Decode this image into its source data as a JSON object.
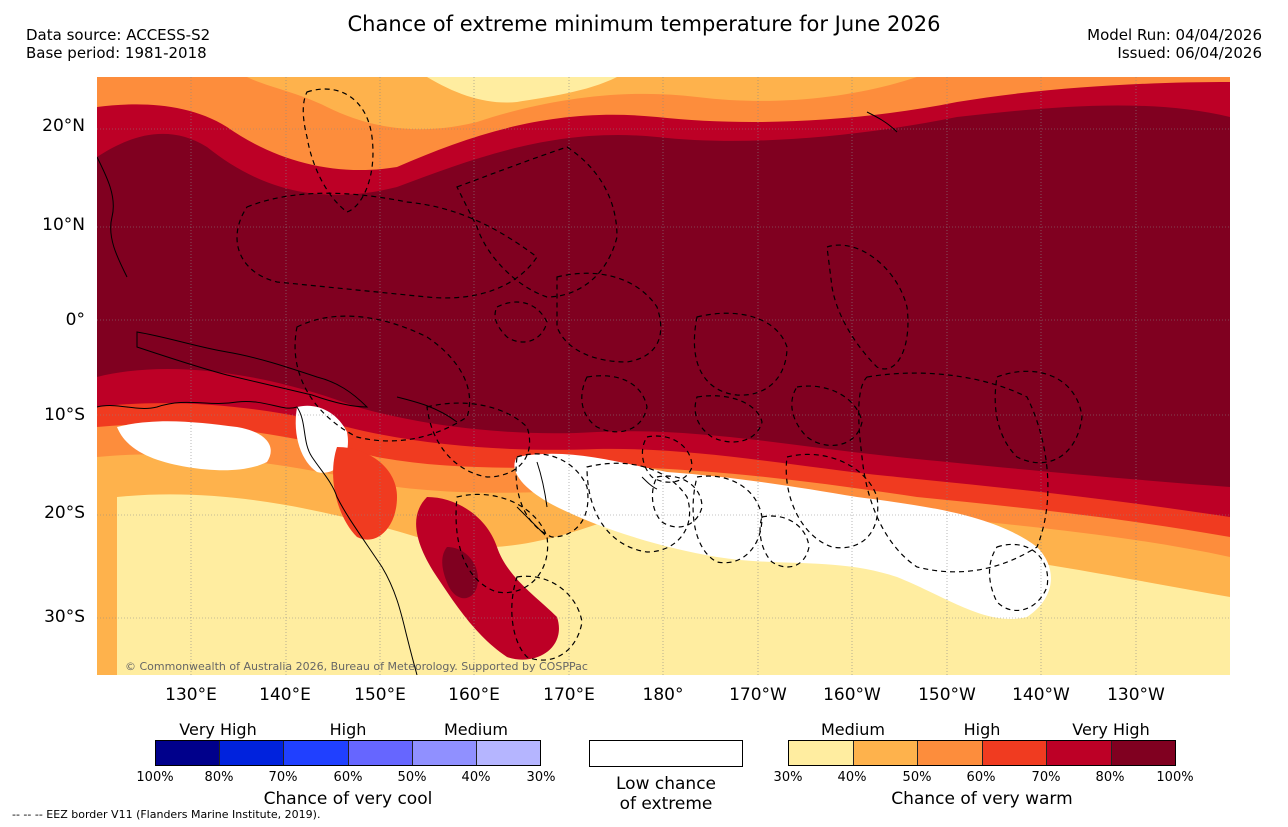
{
  "title": "Chance of extreme minimum temperature for June 2026",
  "header_left": [
    "Data source: ACCESS-S2",
    "Base period: 1981-2018"
  ],
  "header_right": [
    "Model Run: 04/04/2026",
    "Issued: 06/04/2026"
  ],
  "map": {
    "lat_labels": [
      "20°N",
      "10°N",
      "0°",
      "10°S",
      "20°S",
      "30°S"
    ],
    "lon_labels": [
      "130°E",
      "140°E",
      "150°E",
      "160°E",
      "170°E",
      "180°",
      "170°W",
      "160°W",
      "150°W",
      "140°W",
      "130°W"
    ],
    "copyright": "© Commonwealth of Australia 2026, Bureau of Meteorology. Supported by COSPPac",
    "palette_warm": [
      "#ffeda0",
      "#feb24c",
      "#fd8d3c",
      "#f03b20",
      "#bd0026",
      "#800020"
    ],
    "ocean_base": "#800020"
  },
  "legend_cool": {
    "levels": [
      "Very High",
      "High",
      "Medium"
    ],
    "colors": [
      "#00008b",
      "#0022dd",
      "#2040ff",
      "#6666ff",
      "#9090ff",
      "#b5b5ff"
    ],
    "ticks": [
      "100%",
      "80%",
      "70%",
      "60%",
      "50%",
      "40%",
      "30%"
    ],
    "caption": "Chance of very cool"
  },
  "legend_low": {
    "caption_line1": "Low chance",
    "caption_line2": "of extreme"
  },
  "legend_warm": {
    "levels": [
      "Medium",
      "High",
      "Very High"
    ],
    "colors": [
      "#ffeda0",
      "#feb24c",
      "#fd8d3c",
      "#f03b20",
      "#bd0026",
      "#800020"
    ],
    "ticks": [
      "30%",
      "40%",
      "50%",
      "60%",
      "70%",
      "80%",
      "100%"
    ],
    "caption": "Chance of very warm"
  },
  "footnote": "--  --  -- EEZ border V11 (Flanders Marine Institute, 2019)."
}
